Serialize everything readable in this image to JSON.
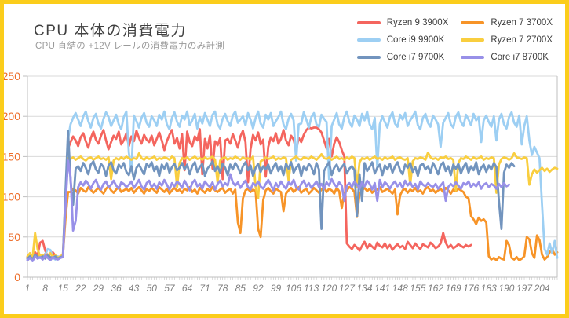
{
  "frame": {
    "border_color": "#FBCD1B"
  },
  "header": {
    "title": "CPU 本体の消費電力",
    "subtitle": "CPU 直結の +12V レールの消費電力のみ計測"
  },
  "legend": {
    "items": [
      {
        "label": "Ryzen 9 3900X",
        "color": "#F4655E"
      },
      {
        "label": "Ryzen 7 3700X",
        "color": "#F79428"
      },
      {
        "label": "Core i9 9900K",
        "color": "#9DCFF3"
      },
      {
        "label": "Ryzen 7 2700X",
        "color": "#F9CE3F"
      },
      {
        "label": "Core i7 9700K",
        "color": "#7294BE"
      },
      {
        "label": "Core i7 8700K",
        "color": "#9890E8"
      }
    ]
  },
  "chart_data": {
    "type": "line",
    "title": "CPU 本体の消費電力",
    "subtitle": "CPU 直結の +12V レールの消費電力のみ計測",
    "xlabel": "",
    "ylabel": "",
    "unit": "W",
    "x_start": 1,
    "x_ticks": [
      1,
      8,
      15,
      22,
      29,
      36,
      43,
      50,
      57,
      64,
      71,
      78,
      85,
      92,
      99,
      106,
      113,
      120,
      127,
      134,
      141,
      148,
      155,
      162,
      169,
      176,
      183,
      190,
      197,
      204
    ],
    "y_ticks": [
      0,
      50,
      100,
      150,
      200,
      250
    ],
    "ylim": [
      0,
      250
    ],
    "grid": "horizontal",
    "legend_position": "top-right",
    "axis_color": "#BFBFBF",
    "grid_color": "#D9D9D9",
    "y_label_color": "#ED6C28",
    "x_label_color": "#7f7f7f",
    "series": [
      {
        "name": "Ryzen 9 3900X",
        "color": "#F4655E",
        "values": [
          25,
          28,
          24,
          31,
          27,
          43,
          45,
          33,
          26,
          29,
          31,
          27,
          25,
          26,
          28,
          90,
          160,
          168,
          175,
          170,
          163,
          174,
          179,
          169,
          161,
          173,
          181,
          171,
          166,
          176,
          183,
          170,
          159,
          168,
          176,
          172,
          181,
          165,
          170,
          179,
          163,
          175,
          169,
          182,
          173,
          166,
          177,
          171,
          168,
          176,
          164,
          172,
          180,
          170,
          158,
          169,
          177,
          183,
          166,
          173,
          160,
          178,
          133,
          181,
          168,
          163,
          175,
          170,
          184,
          128,
          172,
          160,
          176,
          135,
          169,
          164,
          173,
          122,
          170,
          172,
          166,
          178,
          170,
          161,
          175,
          182,
          168,
          118,
          159,
          177,
          170,
          180,
          165,
          171,
          125,
          162,
          174,
          169,
          179,
          166,
          172,
          183,
          170,
          164,
          176,
          171,
          158,
          173,
          168,
          177,
          183,
          186,
          185,
          186,
          186,
          184,
          180,
          170,
          160,
          172,
          150,
          166,
          174,
          168,
          158,
          150,
          42,
          38,
          35,
          40,
          37,
          33,
          39,
          44,
          36,
          41,
          38,
          35,
          43,
          39,
          37,
          42,
          36,
          40,
          34,
          38,
          41,
          37,
          39,
          35,
          44,
          40,
          36,
          42,
          38,
          35,
          41,
          39,
          37,
          43,
          40,
          36,
          38,
          42,
          55,
          43,
          37,
          40,
          36,
          38,
          41,
          39,
          37,
          40,
          38,
          40
        ]
      },
      {
        "name": "Ryzen 7 3700X",
        "color": "#F79428",
        "values": [
          24,
          26,
          23,
          28,
          25,
          27,
          24,
          29,
          26,
          23,
          27,
          25,
          24,
          26,
          27,
          72,
          106,
          106,
          110,
          108,
          104,
          111,
          108,
          106,
          112,
          109,
          105,
          108,
          111,
          107,
          104,
          110,
          113,
          108,
          105,
          109,
          112,
          106,
          108,
          110,
          107,
          111,
          105,
          109,
          112,
          108,
          104,
          110,
          107,
          111,
          108,
          105,
          112,
          109,
          106,
          110,
          104,
          108,
          111,
          107,
          109,
          105,
          110,
          108,
          112,
          106,
          109,
          104,
          111,
          108,
          105,
          110,
          107,
          112,
          108,
          106,
          109,
          111,
          105,
          108,
          110,
          104,
          109,
          68,
          55,
          98,
          108,
          110,
          106,
          109,
          107,
          60,
          50,
          96,
          108,
          111,
          107,
          104,
          110,
          108,
          106,
          82,
          104,
          108,
          111,
          106,
          109,
          112,
          105,
          108,
          110,
          104,
          107,
          111,
          108,
          105,
          109,
          112,
          106,
          110,
          108,
          104,
          111,
          107,
          86,
          105,
          108,
          112,
          110,
          106,
          75,
          104,
          108,
          111,
          107,
          110,
          105,
          108,
          109,
          112,
          106,
          108,
          110,
          107,
          104,
          109,
          78,
          102,
          108,
          110,
          105,
          109,
          107,
          111,
          106,
          108,
          104,
          110,
          112,
          107,
          109,
          105,
          108,
          110,
          106,
          111,
          108,
          104,
          109,
          107,
          110,
          108,
          106,
          100,
          98,
          76,
          72,
          66,
          74,
          70,
          72,
          68,
          26,
          22,
          24,
          21,
          25,
          23,
          22,
          45,
          40,
          24,
          22,
          25,
          21,
          23,
          26,
          50,
          47,
          30,
          24,
          52,
          46,
          28,
          22,
          25,
          31,
          35,
          28,
          31
        ]
      },
      {
        "name": "Core i9 9900K",
        "color": "#9DCFF3",
        "values": [
          22,
          25,
          21,
          27,
          24,
          26,
          23,
          28,
          35,
          34,
          24,
          22,
          26,
          24,
          25,
          95,
          172,
          190,
          198,
          204,
          196,
          188,
          200,
          206,
          194,
          186,
          198,
          203,
          191,
          185,
          197,
          205,
          199,
          188,
          195,
          202,
          190,
          184,
          199,
          206,
          155,
          132,
          201,
          194,
          186,
          198,
          204,
          192,
          187,
          200,
          195,
          188,
          202,
          196,
          206,
          190,
          184,
          198,
          205,
          193,
          187,
          201,
          196,
          206,
          189,
          195,
          203,
          185,
          199,
          191,
          204,
          196,
          188,
          202,
          206,
          190,
          185,
          197,
          203,
          194,
          188,
          201,
          206,
          192,
          196,
          200,
          189,
          204,
          196,
          185,
          198,
          206,
          191,
          186,
          202,
          196,
          204,
          188,
          194,
          199,
          206,
          190,
          184,
          197,
          203,
          195,
          145,
          190,
          191,
          205,
          196,
          186,
          199,
          204,
          190,
          187,
          202,
          197,
          193,
          122,
          188,
          196,
          204,
          190,
          185,
          199,
          206,
          193,
          187,
          201,
          196,
          188,
          203,
          195,
          206,
          190,
          184,
          198,
          136,
          190,
          200,
          193,
          186,
          199,
          205,
          191,
          187,
          202,
          196,
          204,
          188,
          195,
          200,
          206,
          189,
          184,
          198,
          203,
          192,
          187,
          201,
          196,
          190,
          162,
          192,
          198,
          204,
          190,
          186,
          200,
          205,
          193,
          188,
          202,
          196,
          189,
          203,
          195,
          199,
          168,
          195,
          201,
          193,
          187,
          200,
          170,
          196,
          203,
          190,
          185,
          199,
          205,
          192,
          187,
          201,
          165,
          188,
          200,
          170,
          152,
          162,
          155,
          148,
          90,
          35,
          28,
          42,
          30,
          45,
          24
        ]
      },
      {
        "name": "Ryzen 7 2700X",
        "color": "#F9CE3F",
        "values": [
          26,
          30,
          24,
          55,
          35,
          26,
          28,
          24,
          27,
          30,
          25,
          27,
          24,
          26,
          28,
          98,
          148,
          147,
          149,
          146,
          148,
          150,
          147,
          145,
          148,
          149,
          146,
          148,
          150,
          147,
          148,
          146,
          149,
          122,
          145,
          148,
          146,
          149,
          147,
          150,
          148,
          146,
          148,
          147,
          154,
          148,
          146,
          149,
          147,
          148,
          150,
          146,
          148,
          147,
          149,
          148,
          146,
          150,
          148,
          112,
          142,
          148,
          147,
          149,
          146,
          148,
          150,
          147,
          148,
          146,
          149,
          147,
          148,
          150,
          146,
          118,
          145,
          148,
          149,
          146,
          148,
          147,
          150,
          148,
          146,
          149,
          147,
          148,
          146,
          150,
          112,
          98,
          144,
          146,
          149,
          147,
          148,
          150,
          146,
          148,
          147,
          149,
          148,
          120,
          146,
          148,
          150,
          147,
          146,
          149,
          148,
          147,
          150,
          148,
          146,
          149,
          153,
          148,
          147,
          149,
          146,
          148,
          150,
          147,
          148,
          146,
          149,
          147,
          150,
          148,
          112,
          143,
          148,
          147,
          149,
          146,
          148,
          150,
          147,
          148,
          146,
          149,
          147,
          148,
          150,
          146,
          148,
          149,
          147,
          146,
          148,
          115,
          144,
          148,
          147,
          149,
          148,
          146,
          155,
          149,
          147,
          148,
          146,
          149,
          148,
          150,
          147,
          148,
          146,
          108,
          142,
          148,
          147,
          150,
          148,
          146,
          149,
          147,
          148,
          150,
          146,
          148,
          147,
          149,
          148,
          105,
          140,
          147,
          149,
          148,
          146,
          148,
          154,
          149,
          148,
          147,
          149,
          148,
          115,
          128,
          134,
          130,
          133,
          136,
          132,
          135,
          131,
          134,
          136,
          135
        ]
      },
      {
        "name": "Core i7 9700K",
        "color": "#7294BE",
        "values": [
          23,
          26,
          22,
          28,
          25,
          24,
          26,
          23,
          27,
          25,
          24,
          26,
          23,
          25,
          26,
          105,
          182,
          120,
          90,
          135,
          138,
          132,
          142,
          136,
          128,
          140,
          144,
          134,
          130,
          141,
          137,
          126,
          139,
          143,
          133,
          129,
          140,
          136,
          142,
          131,
          127,
          138,
          122,
          136,
          140,
          134,
          128,
          141,
          137,
          143,
          132,
          138,
          126,
          140,
          135,
          142,
          130,
          137,
          141,
          133,
          136,
          142,
          134,
          140,
          128,
          138,
          143,
          131,
          137,
          141,
          126,
          135,
          139,
          144,
          132,
          138,
          130,
          141,
          136,
          127,
          140,
          134,
          142,
          137,
          129,
          138,
          143,
          133,
          139,
          126,
          136,
          141,
          131,
          138,
          134,
          140,
          129,
          137,
          142,
          132,
          138,
          127,
          141,
          135,
          143,
          130,
          136,
          140,
          126,
          138,
          133,
          141,
          137,
          128,
          142,
          134,
          60,
          132,
          138,
          143,
          127,
          136,
          140,
          132,
          137,
          141,
          129,
          135,
          138,
          133,
          76,
          128,
          95,
          142,
          132,
          137,
          143,
          129,
          136,
          140,
          127,
          139,
          134,
          141,
          130,
          138,
          143,
          133,
          128,
          140,
          136,
          142,
          131,
          137,
          126,
          139,
          141,
          134,
          138,
          130,
          142,
          136,
          128,
          139,
          143,
          132,
          138,
          127,
          140,
          135,
          141,
          129,
          137,
          142,
          130,
          138,
          133,
          143,
          128,
          136,
          140,
          131,
          139,
          134,
          142,
          137,
          95,
          60,
          130,
          140,
          136,
          142,
          138
        ]
      },
      {
        "name": "Core i7 8700K",
        "color": "#9890E8",
        "values": [
          21,
          24,
          20,
          26,
          23,
          25,
          22,
          27,
          24,
          21,
          25,
          23,
          22,
          24,
          25,
          88,
          145,
          125,
          58,
          70,
          112,
          118,
          114,
          120,
          116,
          110,
          117,
          121,
          113,
          109,
          116,
          119,
          112,
          115,
          120,
          114,
          110,
          118,
          116,
          112,
          115,
          119,
          111,
          116,
          121,
          113,
          109,
          117,
          120,
          112,
          116,
          110,
          118,
          114,
          121,
          115,
          109,
          117,
          113,
          119,
          116,
          111,
          120,
          114,
          108,
          117,
          121,
          113,
          116,
          110,
          119,
          115,
          112,
          118,
          109,
          116,
          120,
          113,
          117,
          114,
          128,
          118,
          114,
          118,
          111,
          116,
          120,
          112,
          109,
          117,
          114,
          119,
          113,
          110,
          116,
          121,
          115,
          108,
          117,
          112,
          119,
          114,
          110,
          118,
          115,
          121,
          112,
          109,
          116,
          120,
          113,
          117,
          111,
          115,
          119,
          112,
          116,
          110,
          118,
          114,
          122,
          116,
          112,
          118,
          114,
          95,
          114,
          117,
          112,
          119,
          115,
          110,
          118,
          113,
          120,
          116,
          109,
          117,
          95,
          121,
          112,
          118,
          115,
          110,
          116,
          119,
          113,
          117,
          111,
          120,
          114,
          118,
          112,
          116,
          109,
          119,
          115,
          113,
          117,
          114,
          112,
          116,
          110,
          114,
          118,
          95,
          112,
          116,
          113,
          118,
          114,
          110,
          117,
          115,
          119,
          112,
          116,
          113,
          118,
          110,
          115,
          117,
          112,
          116,
          114,
          110,
          116,
          112,
          117,
          113,
          115
        ]
      }
    ]
  }
}
